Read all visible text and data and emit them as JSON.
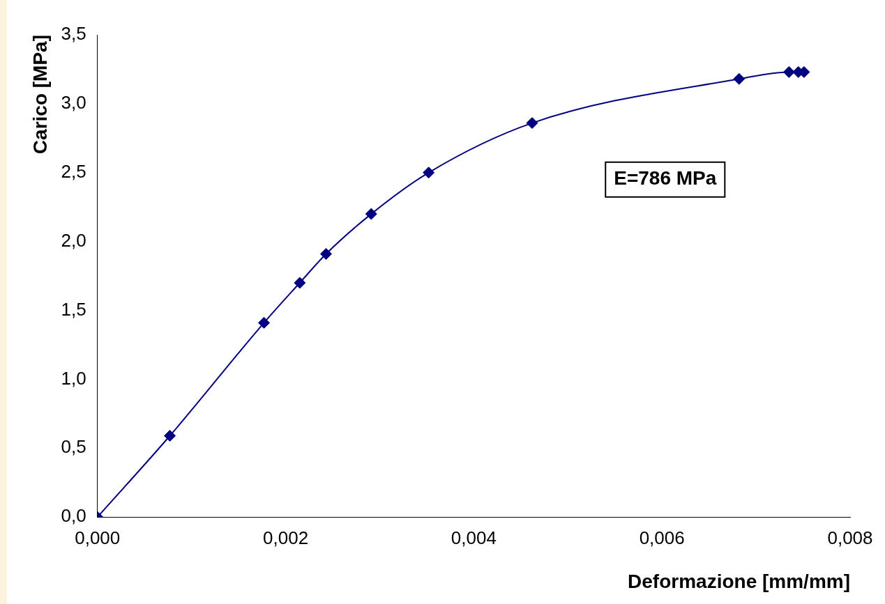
{
  "chart_data": {
    "type": "line",
    "xlabel": "Deformazione [mm/mm]",
    "ylabel": "Carico [MPa]",
    "x": [
      0,
      0.00077,
      0.00177,
      0.00215,
      0.00243,
      0.00291,
      0.00352,
      0.00462,
      0.00682,
      0.00735,
      0.00745,
      0.00751
    ],
    "series": [
      {
        "color": "#000080",
        "values": [
          0,
          0.59,
          1.41,
          1.7,
          1.91,
          2.2,
          2.5,
          2.86,
          3.18,
          3.23,
          3.23,
          3.23
        ]
      }
    ],
    "xlim": [
      0,
      0.008
    ],
    "xticks": [
      {
        "value": 0,
        "label": "0,000"
      },
      {
        "value": 0.002,
        "label": "0,002"
      },
      {
        "value": 0.004,
        "label": "0,004"
      },
      {
        "value": 0.006,
        "label": "0,006"
      },
      {
        "value": 0.008,
        "label": "0,008"
      }
    ],
    "ylim": [
      0,
      3.5
    ],
    "yticks": [
      {
        "value": 0,
        "label": "0,0"
      },
      {
        "value": 0.5,
        "label": "0,5"
      },
      {
        "value": 1,
        "label": "1,0"
      },
      {
        "value": 1.5,
        "label": "1,5"
      },
      {
        "value": 2,
        "label": "2,0"
      },
      {
        "value": 2.5,
        "label": "2,5"
      },
      {
        "value": 3,
        "label": "3,0"
      },
      {
        "value": 3.5,
        "label": "3,5"
      }
    ],
    "annotations": [
      "E=786 MPa"
    ],
    "marker": "diamond",
    "line_style": "solid",
    "grid": false,
    "legend": false
  }
}
